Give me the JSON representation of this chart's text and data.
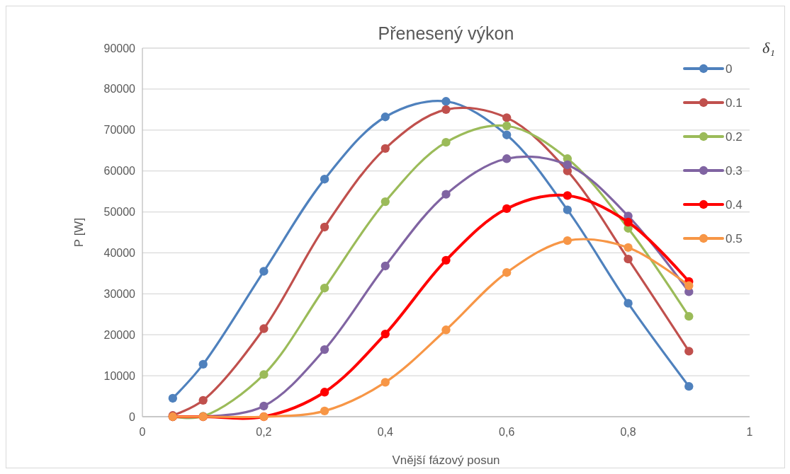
{
  "chart_data": {
    "type": "line",
    "title": "Přenesený výkon",
    "xlabel": "Vnější fázový posun",
    "ylabel": "P [W]",
    "legend_title": "δ₁",
    "x": [
      0.05,
      0.1,
      0.2,
      0.3,
      0.4,
      0.5,
      0.6,
      0.7,
      0.8,
      0.9
    ],
    "series": [
      {
        "name": "0",
        "color": "#4f81bd",
        "values": [
          4500,
          12800,
          35500,
          58000,
          73200,
          77000,
          68800,
          50500,
          27700,
          7400
        ]
      },
      {
        "name": "0.1",
        "color": "#c0504d",
        "values": [
          300,
          4000,
          21500,
          46300,
          65500,
          75000,
          73000,
          60000,
          38500,
          16000
        ]
      },
      {
        "name": "0.2",
        "color": "#9bbb59",
        "values": [
          0,
          100,
          10300,
          31400,
          52500,
          67000,
          71000,
          63000,
          46000,
          24500
        ]
      },
      {
        "name": "0.3",
        "color": "#8064a2",
        "values": [
          0,
          0,
          2600,
          16400,
          36800,
          54300,
          63000,
          61500,
          49000,
          30500
        ]
      },
      {
        "name": "0.4",
        "color": "#ff0000",
        "values": [
          0,
          0,
          0,
          6000,
          20200,
          38200,
          50800,
          54000,
          47500,
          33000
        ]
      },
      {
        "name": "0.5",
        "color": "#f79646",
        "values": [
          0,
          0,
          0,
          1400,
          8400,
          21200,
          35200,
          43000,
          41300,
          32000
        ]
      }
    ],
    "xlim": [
      0,
      1
    ],
    "xticks": [
      0,
      {
        "value": 0.2,
        "label": "0,2"
      },
      {
        "value": 0.4,
        "label": "0,4"
      },
      {
        "value": 0.6,
        "label": "0,6"
      },
      {
        "value": 0.8,
        "label": "0,8"
      },
      1
    ],
    "ylim": [
      0,
      90000
    ],
    "yticks": [
      0,
      10000,
      20000,
      30000,
      40000,
      50000,
      60000,
      70000,
      80000,
      90000
    ],
    "grid": "y",
    "legend": "right",
    "marker": "circle",
    "line_style": "solid"
  }
}
